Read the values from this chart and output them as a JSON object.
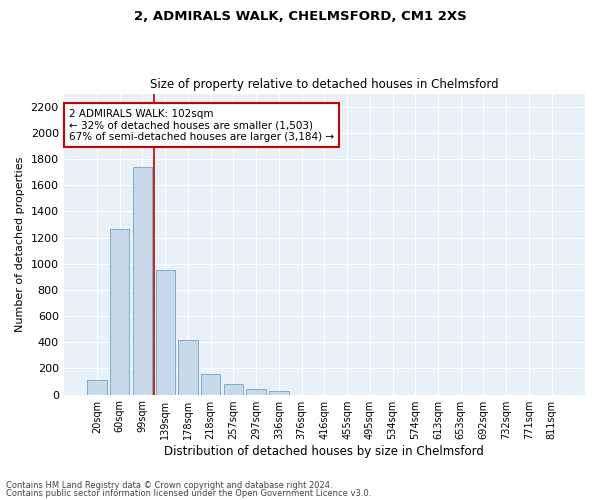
{
  "title_line1": "2, ADMIRALS WALK, CHELMSFORD, CM1 2XS",
  "title_line2": "Size of property relative to detached houses in Chelmsford",
  "xlabel": "Distribution of detached houses by size in Chelmsford",
  "ylabel": "Number of detached properties",
  "bar_labels": [
    "20sqm",
    "60sqm",
    "99sqm",
    "139sqm",
    "178sqm",
    "218sqm",
    "257sqm",
    "297sqm",
    "336sqm",
    "376sqm",
    "416sqm",
    "455sqm",
    "495sqm",
    "534sqm",
    "574sqm",
    "613sqm",
    "653sqm",
    "692sqm",
    "732sqm",
    "771sqm",
    "811sqm"
  ],
  "bar_values": [
    115,
    1265,
    1740,
    950,
    415,
    155,
    78,
    42,
    25,
    0,
    0,
    0,
    0,
    0,
    0,
    0,
    0,
    0,
    0,
    0,
    0
  ],
  "bar_color": "#c8d9eb",
  "bar_edge_color": "#7aafc8",
  "grid_color": "#c8d9eb",
  "background_color": "#e8f0f8",
  "vline_color": "#cc0000",
  "vline_index": 2.5,
  "ylim": [
    0,
    2300
  ],
  "yticks": [
    0,
    200,
    400,
    600,
    800,
    1000,
    1200,
    1400,
    1600,
    1800,
    2000,
    2200
  ],
  "annotation_title": "2 ADMIRALS WALK: 102sqm",
  "annotation_line1": "← 32% of detached houses are smaller (1,503)",
  "annotation_line2": "67% of semi-detached houses are larger (3,184) →",
  "annotation_box_color": "#cc0000",
  "footnote1": "Contains HM Land Registry data © Crown copyright and database right 2024.",
  "footnote2": "Contains public sector information licensed under the Open Government Licence v3.0."
}
